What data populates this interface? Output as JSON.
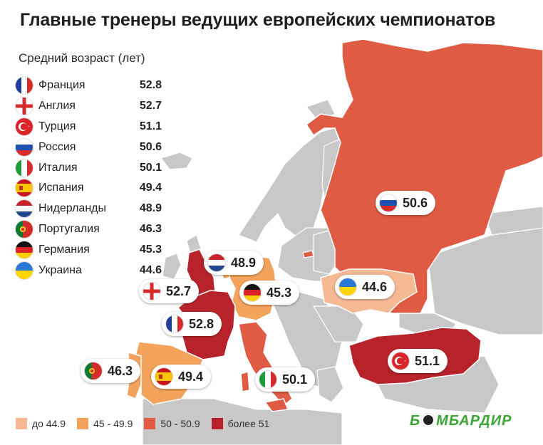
{
  "title": "Главные тренеры ведущих европейских чемпионатов",
  "subtitle": "Средний возраст (лет)",
  "colors": {
    "background": "#ffffff",
    "land": "#c8c8c8",
    "border": "#ffffff",
    "bin_1": "#f5b994",
    "bin_2": "#f4a35c",
    "bin_3": "#e05b43",
    "bin_4": "#b8232b"
  },
  "ranking": [
    {
      "country": "Франция",
      "value": "52.8",
      "flag": "france-flag"
    },
    {
      "country": "Англия",
      "value": "52.7",
      "flag": "england-flag"
    },
    {
      "country": "Турция",
      "value": "51.1",
      "flag": "turkey-flag"
    },
    {
      "country": "Россия",
      "value": "50.6",
      "flag": "russia-flag"
    },
    {
      "country": "Италия",
      "value": "50.1",
      "flag": "italy-flag"
    },
    {
      "country": "Испания",
      "value": "49.4",
      "flag": "spain-flag"
    },
    {
      "country": "Нидерланды",
      "value": "48.9",
      "flag": "netherlands-flag"
    },
    {
      "country": "Португалия",
      "value": "46.3",
      "flag": "portugal-flag"
    },
    {
      "country": "Германия",
      "value": "45.3",
      "flag": "germany-flag"
    },
    {
      "country": "Украина",
      "value": "44.6",
      "flag": "ukraine-flag"
    }
  ],
  "map_labels": [
    {
      "id": "russia",
      "value": "50.6"
    },
    {
      "id": "netherlands",
      "value": "48.9"
    },
    {
      "id": "germany",
      "value": "45.3"
    },
    {
      "id": "ukraine",
      "value": "44.6"
    },
    {
      "id": "england",
      "value": "52.7"
    },
    {
      "id": "france",
      "value": "52.8"
    },
    {
      "id": "portugal",
      "value": "46.3"
    },
    {
      "id": "spain",
      "value": "49.4"
    },
    {
      "id": "italy",
      "value": "50.1"
    },
    {
      "id": "turkey",
      "value": "51.1"
    }
  ],
  "legend": [
    {
      "label": "до 44.9",
      "color": "#f5b994"
    },
    {
      "label": "45 - 49.9",
      "color": "#f4a35c"
    },
    {
      "label": "50 - 50.9",
      "color": "#e05b43"
    },
    {
      "label": "более 51",
      "color": "#b8232b"
    }
  ],
  "logo": {
    "part1": "Б",
    "part2": "МБАРДИР"
  }
}
